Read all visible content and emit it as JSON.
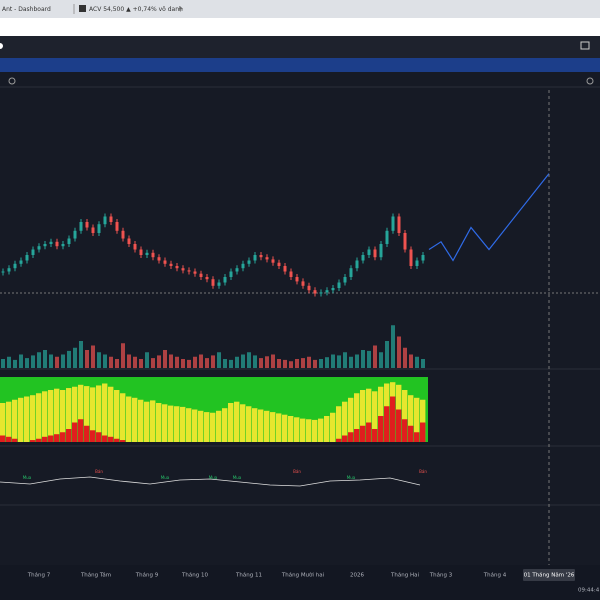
{
  "tabs": [
    {
      "title": "Ant - Dashboard"
    },
    {
      "title": "ACV 54,500 ▲ +0,74% vô danh"
    }
  ],
  "chart": {
    "type": "candlestick",
    "closes": [
      35,
      38,
      42,
      45,
      50,
      55,
      58,
      60,
      62,
      58,
      60,
      65,
      72,
      80,
      75,
      70,
      78,
      85,
      80,
      72,
      65,
      60,
      55,
      50,
      52,
      48,
      45,
      42,
      40,
      38,
      36,
      35,
      33,
      30,
      28,
      22,
      25,
      30,
      35,
      38,
      42,
      45,
      50,
      48,
      46,
      43,
      40,
      35,
      30,
      26,
      22,
      18,
      15,
      16,
      18,
      20,
      25,
      30,
      38,
      45,
      50,
      55,
      48,
      60,
      72,
      85,
      70,
      55,
      40,
      45,
      50
    ],
    "volumes": [
      20,
      25,
      18,
      30,
      22,
      28,
      35,
      40,
      30,
      25,
      30,
      38,
      45,
      60,
      40,
      50,
      35,
      30,
      25,
      20,
      55,
      30,
      25,
      20,
      35,
      22,
      28,
      40,
      30,
      25,
      20,
      18,
      25,
      30,
      22,
      28,
      35,
      20,
      18,
      25,
      30,
      35,
      28,
      22,
      26,
      30,
      20,
      18,
      15,
      20,
      22,
      25,
      18,
      20,
      24,
      30,
      28,
      35,
      25,
      30,
      40,
      38,
      50,
      35,
      60,
      95,
      70,
      45,
      30,
      25,
      20
    ],
    "trend": [
      60,
      62,
      65,
      68,
      70,
      72,
      75,
      78,
      80,
      82,
      80,
      83,
      85,
      88,
      86,
      84,
      87,
      90,
      85,
      80,
      75,
      70,
      68,
      65,
      62,
      64,
      60,
      58,
      56,
      55,
      54,
      52,
      50,
      48,
      46,
      45,
      48,
      52,
      60,
      62,
      58,
      55,
      52,
      50,
      48,
      46,
      44,
      42,
      40,
      38,
      36,
      35,
      34,
      36,
      40,
      45,
      55,
      62,
      68,
      75,
      80,
      82,
      78,
      85,
      90,
      92,
      88,
      80,
      72,
      68,
      65
    ],
    "pressure": [
      10,
      8,
      5,
      0,
      0,
      3,
      5,
      8,
      10,
      12,
      15,
      20,
      30,
      35,
      25,
      18,
      15,
      10,
      8,
      5,
      3,
      0,
      0,
      0,
      0,
      0,
      0,
      0,
      0,
      0,
      0,
      0,
      0,
      0,
      0,
      0,
      0,
      0,
      0,
      0,
      0,
      0,
      0,
      0,
      0,
      0,
      0,
      0,
      0,
      0,
      0,
      0,
      0,
      0,
      0,
      0,
      5,
      10,
      15,
      20,
      25,
      30,
      20,
      40,
      55,
      70,
      50,
      35,
      25,
      15,
      30
    ],
    "oscillator": [
      0,
      -2,
      3,
      5,
      1,
      -2,
      2,
      3,
      0,
      -3,
      -4,
      1,
      2,
      4,
      -3
    ],
    "projection": [
      [
        71,
        55
      ],
      [
        73,
        62
      ],
      [
        75,
        45
      ],
      [
        78,
        75
      ],
      [
        81,
        55
      ],
      [
        91,
        124
      ]
    ],
    "signals": [
      {
        "label": "Mua",
        "at": 4
      },
      {
        "label": "Bán",
        "at": 16
      },
      {
        "label": "Mua",
        "at": 27
      },
      {
        "label": "Mua",
        "at": 35
      },
      {
        "label": "Mua",
        "at": 39
      },
      {
        "label": "Bán",
        "at": 49
      },
      {
        "label": "Mua",
        "at": 58
      },
      {
        "label": "Bán",
        "at": 70
      }
    ],
    "xaxis": [
      {
        "label": "Tháng 7",
        "at": 6
      },
      {
        "label": "Tháng Tám",
        "at": 15.5
      },
      {
        "label": "Tháng 9",
        "at": 24
      },
      {
        "label": "Tháng 10",
        "at": 32
      },
      {
        "label": "Tháng 11",
        "at": 41
      },
      {
        "label": "Tháng Mười hai",
        "at": 50
      },
      {
        "label": "2026",
        "at": 59
      },
      {
        "label": "Tháng Hai",
        "at": 67
      },
      {
        "label": "Tháng 3",
        "at": 73
      },
      {
        "label": "Tháng 4",
        "at": 82
      }
    ],
    "cursor": {
      "label": "01 Tháng Năm '26",
      "at": 91
    },
    "clock": "09:44:4"
  }
}
